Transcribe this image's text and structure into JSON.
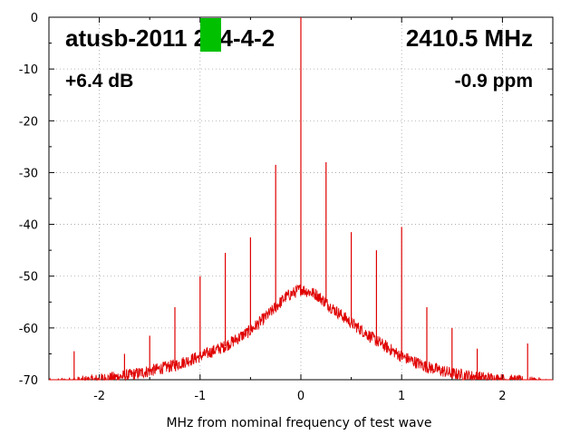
{
  "chart_data": {
    "type": "line",
    "title": "",
    "xlabel": "MHz from nominal frequency of test wave",
    "ylabel": "",
    "xlim": [
      -2.5,
      2.5
    ],
    "ylim": [
      -70,
      0
    ],
    "x_ticks": [
      -2,
      -1,
      0,
      1,
      2
    ],
    "y_ticks": [
      0,
      -10,
      -20,
      -30,
      -40,
      -50,
      -60,
      -70
    ],
    "grid": true,
    "legend": "none",
    "series_color": "#e00000",
    "noise_floor": {
      "points": [
        [
          -2.5,
          -71
        ],
        [
          -2.2,
          -70.5
        ],
        [
          -2.0,
          -70
        ],
        [
          -1.75,
          -69.3
        ],
        [
          -1.5,
          -68.3
        ],
        [
          -1.25,
          -67.2
        ],
        [
          -1.0,
          -65.5
        ],
        [
          -0.75,
          -63.5
        ],
        [
          -0.5,
          -60.5
        ],
        [
          -0.3,
          -57
        ],
        [
          -0.15,
          -54
        ],
        [
          0.0,
          -52.5
        ],
        [
          0.15,
          -53.5
        ],
        [
          0.3,
          -56
        ],
        [
          0.5,
          -59
        ],
        [
          0.75,
          -62.5
        ],
        [
          1.0,
          -65.5
        ],
        [
          1.25,
          -67.5
        ],
        [
          1.5,
          -68.8
        ],
        [
          1.75,
          -69.5
        ],
        [
          2.0,
          -70
        ],
        [
          2.25,
          -70.5
        ],
        [
          2.5,
          -71
        ]
      ]
    },
    "spurs": [
      {
        "x": -2.25,
        "y": -64.5
      },
      {
        "x": -1.75,
        "y": -65
      },
      {
        "x": -1.5,
        "y": -61.5
      },
      {
        "x": -1.25,
        "y": -56
      },
      {
        "x": -1.0,
        "y": -50
      },
      {
        "x": -0.75,
        "y": -45.5
      },
      {
        "x": -0.5,
        "y": -42.5
      },
      {
        "x": -0.25,
        "y": -28.5
      },
      {
        "x": 0.0,
        "y": 0
      },
      {
        "x": 0.25,
        "y": -28
      },
      {
        "x": 0.5,
        "y": -41.5
      },
      {
        "x": 0.75,
        "y": -45
      },
      {
        "x": 1.0,
        "y": -40.5
      },
      {
        "x": 1.25,
        "y": -56
      },
      {
        "x": 1.5,
        "y": -60
      },
      {
        "x": 1.75,
        "y": -64
      },
      {
        "x": 2.25,
        "y": -63
      }
    ]
  },
  "overlay": {
    "device_id": "atusb-2011 214-4-2",
    "frequency": "2410.5 MHz",
    "gain": "+6.4 dB",
    "ppm": "-0.9 ppm",
    "marker_color": "#00c000"
  }
}
